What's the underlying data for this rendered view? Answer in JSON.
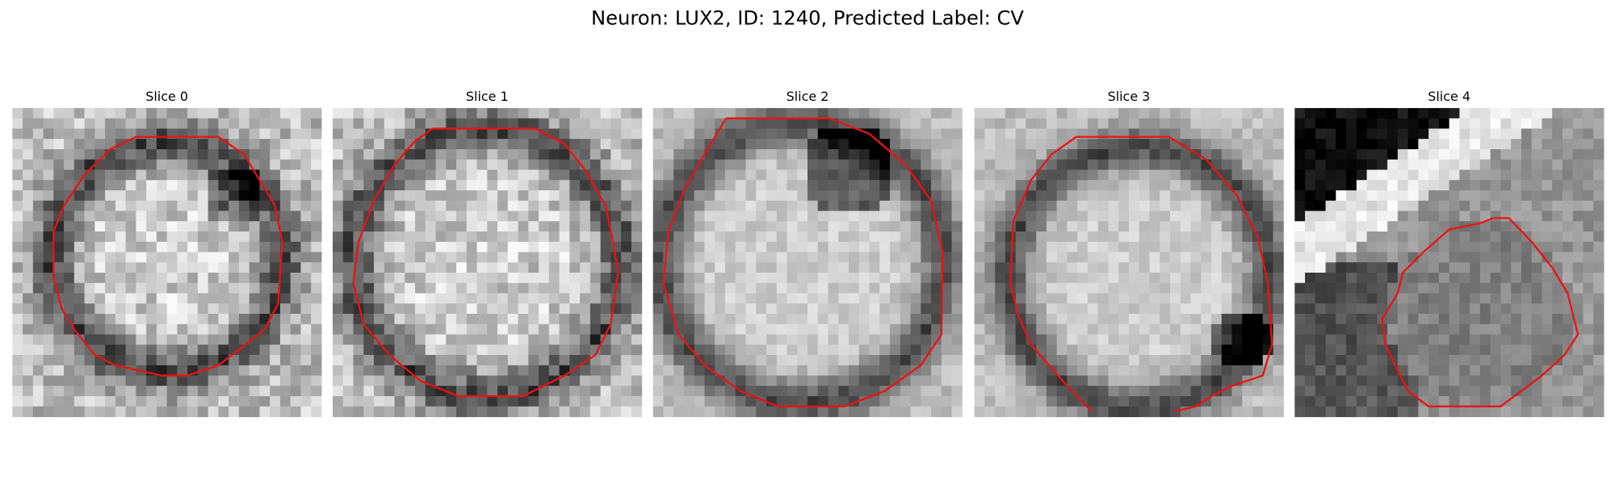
{
  "title": "Neuron: LUX2, ID: 1240, Predicted Label: CV",
  "panels": [
    {
      "title": "Slice 0"
    },
    {
      "title": "Slice 1"
    },
    {
      "title": "Slice 2"
    },
    {
      "title": "Slice 3"
    },
    {
      "title": "Slice 4"
    }
  ]
}
